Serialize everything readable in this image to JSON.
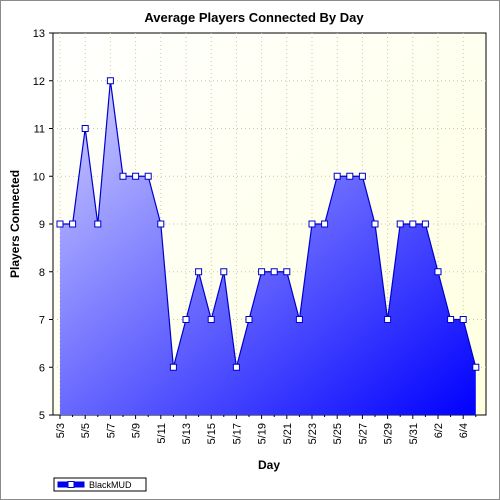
{
  "chart_data": {
    "type": "area",
    "title": "Average Players Connected By Day",
    "xlabel": "Day",
    "ylabel": "Players Connected",
    "ylim": [
      5,
      13
    ],
    "yticks": [
      5,
      6,
      7,
      8,
      9,
      10,
      11,
      12,
      13
    ],
    "grid": true,
    "legend_position": "bottom-left",
    "categories": [
      "5/3",
      "5/4",
      "5/5",
      "5/6",
      "5/7",
      "5/8",
      "5/9",
      "5/10",
      "5/11",
      "5/12",
      "5/13",
      "5/14",
      "5/15",
      "5/16",
      "5/17",
      "5/18",
      "5/19",
      "5/20",
      "5/21",
      "5/22",
      "5/23",
      "5/24",
      "5/25",
      "5/26",
      "5/27",
      "5/28",
      "5/29",
      "5/30",
      "5/31",
      "6/1",
      "6/2",
      "6/3",
      "6/4",
      "6/5"
    ],
    "tick_labels": [
      "5/3",
      "5/5",
      "5/7",
      "5/9",
      "5/11",
      "5/13",
      "5/15",
      "5/17",
      "5/19",
      "5/21",
      "5/23",
      "5/25",
      "5/27",
      "5/29",
      "5/31",
      "6/2",
      "6/4"
    ],
    "series": [
      {
        "name": "BlackMUD",
        "values": [
          9,
          9,
          11,
          9,
          12,
          10,
          10,
          10,
          9,
          6,
          7,
          8,
          7,
          8,
          6,
          7,
          8,
          8,
          8,
          7,
          9,
          9,
          10,
          10,
          10,
          9,
          7,
          9,
          9,
          9,
          8,
          7,
          7,
          6
        ],
        "line_color": "#0000cc",
        "fill_top_color": "#d0d0ff",
        "fill_bottom_color": "#0000ff",
        "marker_fill": "#ffffff"
      }
    ],
    "plot_background": "#ffffe0"
  }
}
